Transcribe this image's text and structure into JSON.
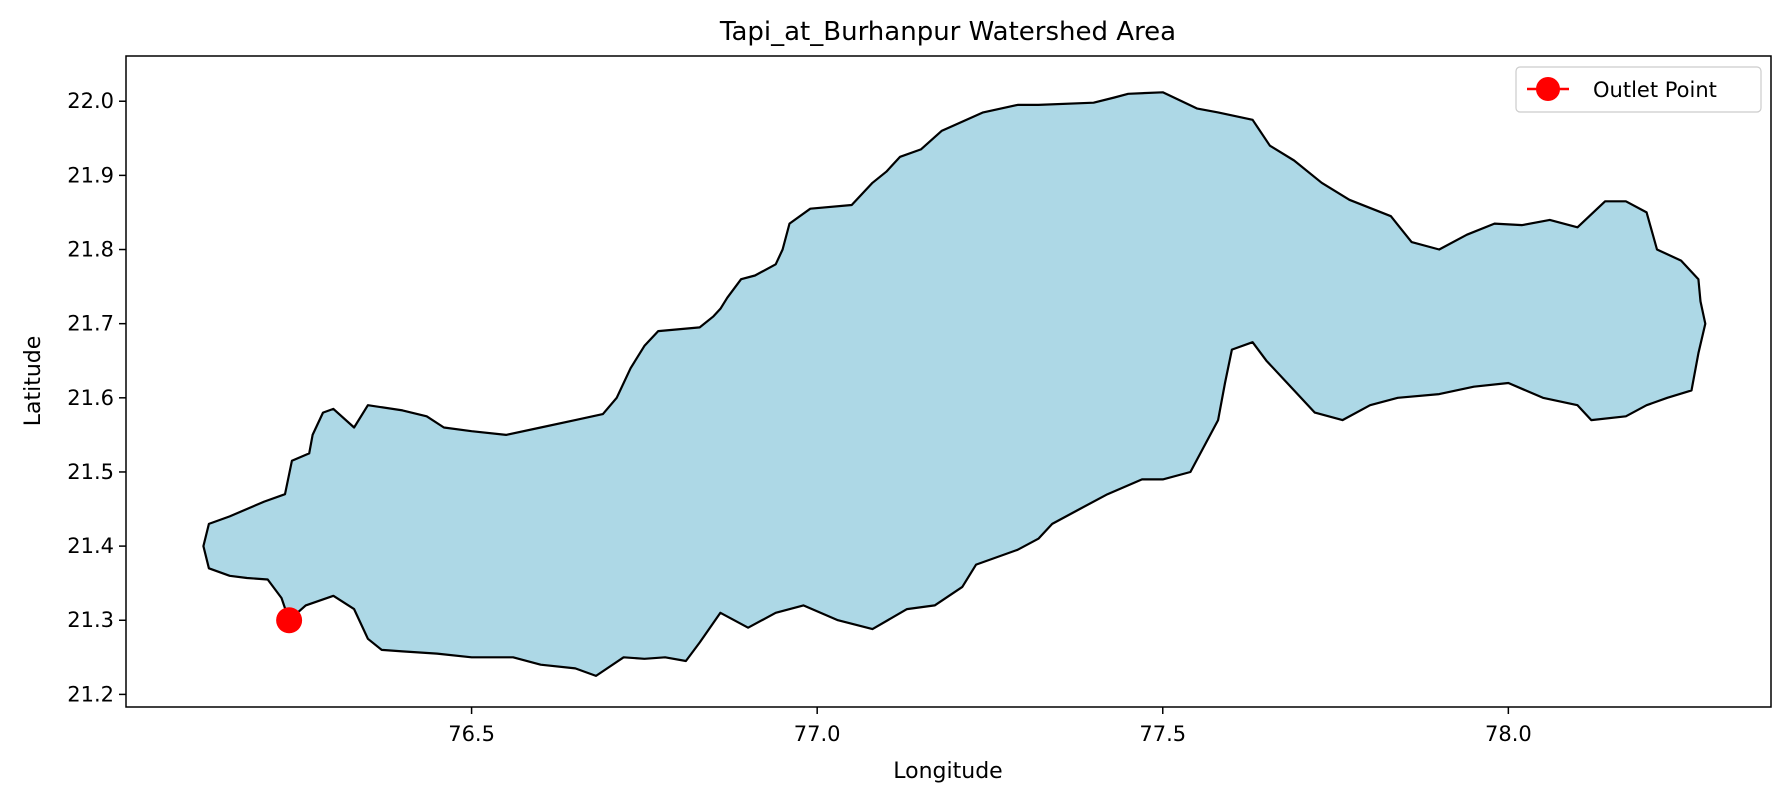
{
  "chart_data": {
    "type": "map",
    "title": "Tapi_at_Burhanpur Watershed Area",
    "xlabel": "Longitude",
    "ylabel": "Latitude",
    "xlim": [
      76.0,
      78.38
    ],
    "ylim": [
      21.183,
      22.061
    ],
    "xticks": [
      76.5,
      77.0,
      77.5,
      78.0
    ],
    "xtick_labels": [
      "76.5",
      "77.0",
      "77.5",
      "78.0"
    ],
    "yticks": [
      21.2,
      21.3,
      21.4,
      21.5,
      21.6,
      21.7,
      21.8,
      21.9,
      22.0
    ],
    "ytick_labels": [
      "21.2",
      "21.3",
      "21.4",
      "21.5",
      "21.6",
      "21.7",
      "21.8",
      "21.9",
      "22.0"
    ],
    "grid": false,
    "legend": {
      "placement": "top-right",
      "entries": [
        "Outlet Point"
      ]
    },
    "watershed": {
      "fill": "#add8e6",
      "edge": "#000000",
      "boundary": [
        [
          76.236,
          21.3
        ],
        [
          76.225,
          21.33
        ],
        [
          76.205,
          21.355
        ],
        [
          76.175,
          21.357
        ],
        [
          76.15,
          21.36
        ],
        [
          76.12,
          21.37
        ],
        [
          76.112,
          21.4
        ],
        [
          76.12,
          21.43
        ],
        [
          76.15,
          21.44
        ],
        [
          76.2,
          21.46
        ],
        [
          76.23,
          21.47
        ],
        [
          76.24,
          21.515
        ],
        [
          76.265,
          21.525
        ],
        [
          76.27,
          21.55
        ],
        [
          76.285,
          21.58
        ],
        [
          76.3,
          21.585
        ],
        [
          76.33,
          21.56
        ],
        [
          76.35,
          21.59
        ],
        [
          76.4,
          21.583
        ],
        [
          76.435,
          21.575
        ],
        [
          76.46,
          21.56
        ],
        [
          76.5,
          21.555
        ],
        [
          76.55,
          21.55
        ],
        [
          76.6,
          21.56
        ],
        [
          76.65,
          21.57
        ],
        [
          76.69,
          21.578
        ],
        [
          76.71,
          21.6
        ],
        [
          76.73,
          21.64
        ],
        [
          76.75,
          21.67
        ],
        [
          76.77,
          21.69
        ],
        [
          76.83,
          21.695
        ],
        [
          76.85,
          21.71
        ],
        [
          76.86,
          21.72
        ],
        [
          76.87,
          21.735
        ],
        [
          76.89,
          21.76
        ],
        [
          76.91,
          21.765
        ],
        [
          76.94,
          21.78
        ],
        [
          76.95,
          21.8
        ],
        [
          76.96,
          21.835
        ],
        [
          76.99,
          21.855
        ],
        [
          77.05,
          21.86
        ],
        [
          77.08,
          21.89
        ],
        [
          77.1,
          21.905
        ],
        [
          77.12,
          21.925
        ],
        [
          77.15,
          21.935
        ],
        [
          77.18,
          21.96
        ],
        [
          77.24,
          21.985
        ],
        [
          77.29,
          21.995
        ],
        [
          77.32,
          21.995
        ],
        [
          77.4,
          21.998
        ],
        [
          77.43,
          22.005
        ],
        [
          77.45,
          22.01
        ],
        [
          77.5,
          22.012
        ],
        [
          77.55,
          21.99
        ],
        [
          77.58,
          21.985
        ],
        [
          77.63,
          21.975
        ],
        [
          77.655,
          21.94
        ],
        [
          77.69,
          21.92
        ],
        [
          77.73,
          21.89
        ],
        [
          77.77,
          21.867
        ],
        [
          77.83,
          21.845
        ],
        [
          77.86,
          21.81
        ],
        [
          77.9,
          21.8
        ],
        [
          77.94,
          21.82
        ],
        [
          77.98,
          21.835
        ],
        [
          78.02,
          21.833
        ],
        [
          78.06,
          21.84
        ],
        [
          78.1,
          21.83
        ],
        [
          78.14,
          21.865
        ],
        [
          78.17,
          21.865
        ],
        [
          78.2,
          21.85
        ],
        [
          78.215,
          21.8
        ],
        [
          78.25,
          21.785
        ],
        [
          78.275,
          21.76
        ],
        [
          78.278,
          21.73
        ],
        [
          78.285,
          21.7
        ],
        [
          78.275,
          21.66
        ],
        [
          78.265,
          21.61
        ],
        [
          78.23,
          21.6
        ],
        [
          78.2,
          21.59
        ],
        [
          78.17,
          21.575
        ],
        [
          78.12,
          21.57
        ],
        [
          78.1,
          21.59
        ],
        [
          78.05,
          21.6
        ],
        [
          78.0,
          21.62
        ],
        [
          77.95,
          21.615
        ],
        [
          77.9,
          21.605
        ],
        [
          77.84,
          21.6
        ],
        [
          77.8,
          21.59
        ],
        [
          77.76,
          21.57
        ],
        [
          77.72,
          21.58
        ],
        [
          77.68,
          21.62
        ],
        [
          77.65,
          21.65
        ],
        [
          77.63,
          21.675
        ],
        [
          77.6,
          21.665
        ],
        [
          77.59,
          21.62
        ],
        [
          77.58,
          21.57
        ],
        [
          77.54,
          21.5
        ],
        [
          77.5,
          21.49
        ],
        [
          77.47,
          21.49
        ],
        [
          77.42,
          21.47
        ],
        [
          77.38,
          21.45
        ],
        [
          77.34,
          21.43
        ],
        [
          77.32,
          21.41
        ],
        [
          77.29,
          21.395
        ],
        [
          77.23,
          21.375
        ],
        [
          77.21,
          21.345
        ],
        [
          77.17,
          21.32
        ],
        [
          77.13,
          21.315
        ],
        [
          77.08,
          21.288
        ],
        [
          77.03,
          21.3
        ],
        [
          76.98,
          21.32
        ],
        [
          76.94,
          21.31
        ],
        [
          76.9,
          21.29
        ],
        [
          76.86,
          21.31
        ],
        [
          76.83,
          21.27
        ],
        [
          76.81,
          21.245
        ],
        [
          76.78,
          21.25
        ],
        [
          76.75,
          21.248
        ],
        [
          76.72,
          21.25
        ],
        [
          76.68,
          21.225
        ],
        [
          76.65,
          21.235
        ],
        [
          76.6,
          21.24
        ],
        [
          76.56,
          21.25
        ],
        [
          76.5,
          21.25
        ],
        [
          76.45,
          21.255
        ],
        [
          76.4,
          21.258
        ],
        [
          76.37,
          21.26
        ],
        [
          76.35,
          21.275
        ],
        [
          76.33,
          21.315
        ],
        [
          76.3,
          21.333
        ],
        [
          76.26,
          21.32
        ],
        [
          76.236,
          21.3
        ]
      ]
    },
    "outlet_point": {
      "label": "Outlet Point",
      "lon": 76.236,
      "lat": 21.3,
      "color": "#ff0000"
    }
  }
}
